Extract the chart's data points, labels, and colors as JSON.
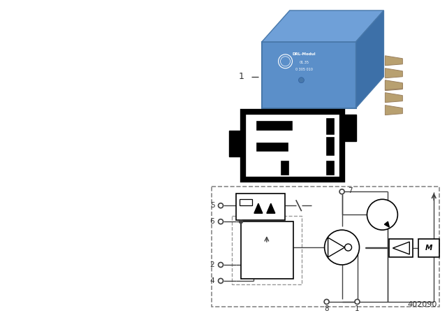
{
  "bg_color": "#ffffff",
  "line_color": "#404040",
  "text_color": "#303030",
  "footer": "402090",
  "relay_color_front": "#5b8fc9",
  "relay_color_top": "#6fa0d8",
  "relay_color_right": "#3d6fa0",
  "pin_border_lw": 5,
  "circuit_dash_color": "#888888"
}
